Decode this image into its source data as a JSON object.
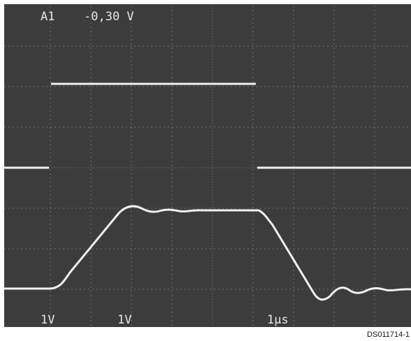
{
  "screen": {
    "channel": "A1",
    "offset": "-0,30 V",
    "ch1_scale": "1V",
    "ch2_scale": "1V",
    "timebase": "1µs"
  },
  "caption": "DS011714-1"
}
